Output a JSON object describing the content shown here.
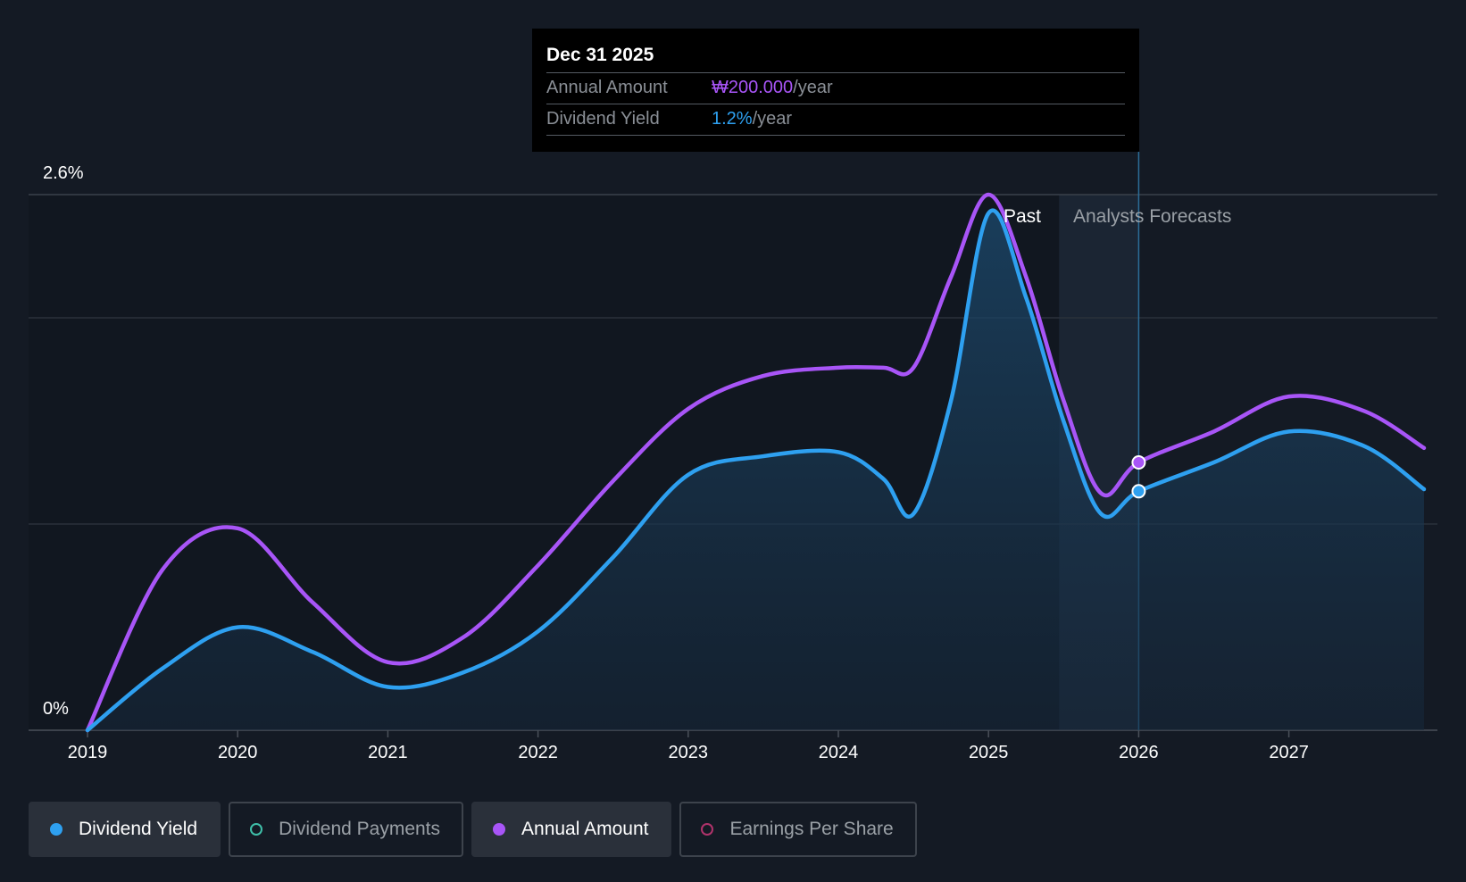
{
  "tooltip": {
    "date": "Dec 31 2025",
    "rows": [
      {
        "label": "Annual Amount",
        "value": "₩200.000",
        "unit": "/year"
      },
      {
        "label": "Dividend Yield",
        "value": "1.2%",
        "unit": "/year"
      }
    ]
  },
  "chart_data": {
    "type": "line",
    "x_ticks": [
      "2019",
      "2020",
      "2021",
      "2022",
      "2023",
      "2024",
      "2025",
      "2026",
      "2027"
    ],
    "y_ticks": [
      "0%",
      "2.6%"
    ],
    "ylim": [
      0,
      2.6
    ],
    "xlim": [
      2019,
      2027.9
    ],
    "past_label": "Past",
    "forecast_label": "Analysts Forecasts",
    "forecast_start": 2025.47,
    "highlight_x": 2026.0,
    "grid": true,
    "legend_position": "bottom",
    "series": [
      {
        "name": "Annual Amount",
        "color": "#a855f7",
        "x": [
          2019.0,
          2019.5,
          2020.0,
          2020.5,
          2021.0,
          2021.5,
          2022.0,
          2022.5,
          2023.0,
          2023.5,
          2024.0,
          2024.3,
          2024.5,
          2024.75,
          2025.0,
          2025.25,
          2025.5,
          2025.75,
          2026.0,
          2026.5,
          2027.0,
          2027.5,
          2027.9
        ],
        "y": [
          0.0,
          0.78,
          0.98,
          0.62,
          0.33,
          0.45,
          0.8,
          1.21,
          1.56,
          1.72,
          1.76,
          1.76,
          1.76,
          2.2,
          2.6,
          2.2,
          1.6,
          1.15,
          1.3,
          1.45,
          1.62,
          1.55,
          1.37
        ]
      },
      {
        "name": "Dividend Yield",
        "color": "#2ea0f0",
        "x": [
          2019.0,
          2019.5,
          2020.0,
          2020.5,
          2021.0,
          2021.5,
          2022.0,
          2022.5,
          2023.0,
          2023.5,
          2024.0,
          2024.3,
          2024.5,
          2024.75,
          2025.0,
          2025.25,
          2025.5,
          2025.75,
          2026.0,
          2026.5,
          2027.0,
          2027.5,
          2027.9
        ],
        "y": [
          0.0,
          0.3,
          0.5,
          0.38,
          0.21,
          0.28,
          0.48,
          0.84,
          1.24,
          1.33,
          1.35,
          1.22,
          1.05,
          1.6,
          2.51,
          2.1,
          1.5,
          1.05,
          1.16,
          1.3,
          1.45,
          1.38,
          1.17
        ]
      }
    ],
    "highlight_values": {
      "Annual Amount": 1.3,
      "Dividend Yield": 1.16
    }
  },
  "legend": [
    {
      "label": "Dividend Yield",
      "color": "#2ea0f0",
      "style": "filled",
      "active": true
    },
    {
      "label": "Dividend Payments",
      "color": "#3fbfa9",
      "style": "hollow",
      "active": false
    },
    {
      "label": "Annual Amount",
      "color": "#a855f7",
      "style": "filled",
      "active": true
    },
    {
      "label": "Earnings Per Share",
      "color": "#b0336b",
      "style": "hollow",
      "active": false
    }
  ]
}
